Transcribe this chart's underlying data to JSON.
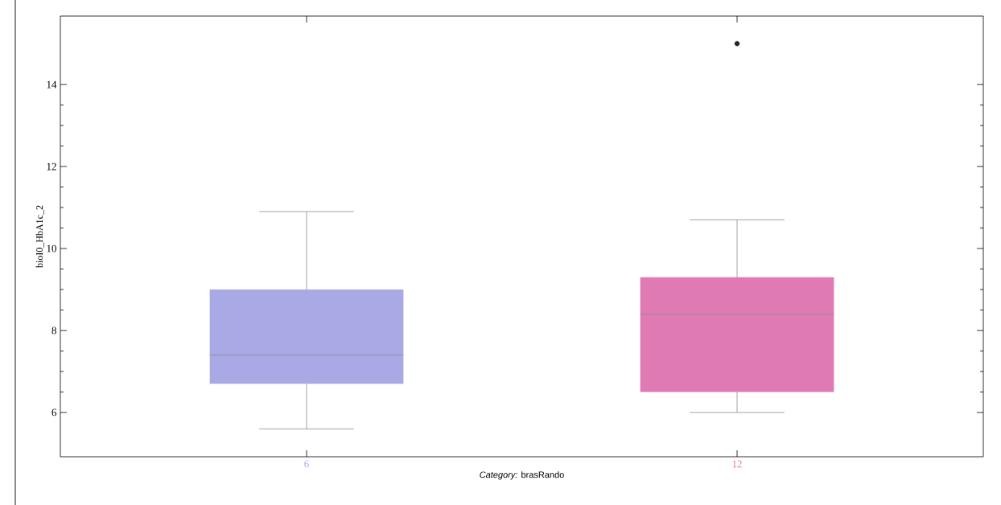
{
  "chart_data": {
    "type": "box",
    "xlabel": "*Category:* brasRando",
    "ylabel": "bioI0_HbA1c_2",
    "categories": [
      "6",
      "12"
    ],
    "boxes": [
      {
        "low": 5.6,
        "q1": 6.7,
        "median": 7.4,
        "q3": 9.0,
        "high": 10.9
      },
      {
        "low": 6.0,
        "q1": 6.5,
        "median": 8.4,
        "q3": 9.3,
        "high": 10.7,
        "outliers": [
          15.0
        ]
      }
    ],
    "colors": [
      "#a9a9e6",
      "#e07ab4"
    ],
    "ylim": [
      4.92,
      15.67
    ],
    "yticks": [
      6,
      8,
      10,
      12,
      14
    ],
    "grid": false
  }
}
